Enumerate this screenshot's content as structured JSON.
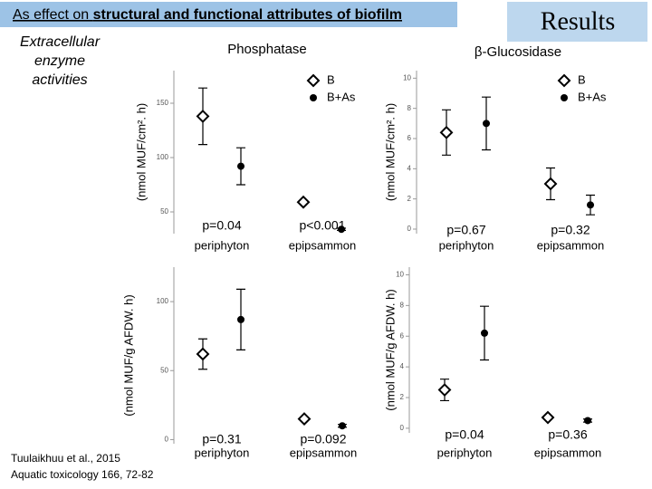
{
  "header": {
    "title_plain": "As effect on ",
    "title_bold": "structural and functional attributes of biofilm",
    "section": "Results"
  },
  "side_label": {
    "lines": [
      "Extracellular",
      "enzyme",
      "activities"
    ]
  },
  "citation": {
    "lines": [
      "Tuulaikhuu et al., 2015",
      "Aquatic toxicology 166, 72-82"
    ]
  },
  "chart_data": [
    {
      "type": "scatter",
      "title": "Phosphatase",
      "y_label": "(nmol MUF/cm². h)",
      "categories": [
        "periphyton",
        "epipsammon"
      ],
      "p_values": [
        "p=0.04",
        "p<0.001"
      ],
      "ylim": [
        30,
        180
      ],
      "yticks": [
        50,
        100,
        150
      ],
      "legend": "upper right",
      "series": [
        {
          "name": "B",
          "marker": "diamond",
          "color": "#000000",
          "values": [
            138,
            59
          ],
          "errors": [
            26,
            1
          ]
        },
        {
          "name": "B+As",
          "marker": "circle",
          "color": "#000000",
          "values": [
            92,
            34
          ],
          "errors": [
            17,
            1
          ]
        }
      ]
    },
    {
      "type": "scatter",
      "title": "β-Glucosidase",
      "y_label": "(nmol MUF/cm². h)",
      "categories": [
        "periphyton",
        "epipsammon"
      ],
      "p_values": [
        "p=0.67",
        "p=0.32"
      ],
      "ylim": [
        -0.3,
        10.5
      ],
      "yticks": [
        0,
        2,
        4,
        6,
        8,
        10
      ],
      "legend": "upper right",
      "series": [
        {
          "name": "B",
          "marker": "diamond",
          "color": "#000000",
          "values": [
            6.4,
            3.0
          ],
          "errors": [
            1.5,
            1.05
          ]
        },
        {
          "name": "B+As",
          "marker": "circle",
          "color": "#000000",
          "values": [
            7.0,
            1.6
          ],
          "errors": [
            1.75,
            0.65
          ]
        }
      ]
    },
    {
      "type": "scatter",
      "y_label": "(nmol MUF/g AFDW. h)",
      "categories": [
        "periphyton",
        "epipsammon"
      ],
      "p_values": [
        "p=0.31",
        "p=0.092"
      ],
      "ylim": [
        -3,
        125
      ],
      "yticks": [
        0,
        50,
        100
      ],
      "series": [
        {
          "marker": "diamond",
          "color": "#000000",
          "values": [
            62,
            15
          ],
          "errors": [
            11,
            1
          ]
        },
        {
          "marker": "circle",
          "color": "#000000",
          "values": [
            87,
            10
          ],
          "errors": [
            22,
            1
          ]
        }
      ]
    },
    {
      "type": "scatter",
      "y_label": "(nmol MUF/g AFDW. h)",
      "categories": [
        "periphyton",
        "epipsammon"
      ],
      "p_values": [
        "p=0.04",
        "p=0.36"
      ],
      "ylim": [
        -0.3,
        10.5
      ],
      "yticks": [
        0,
        2,
        4,
        6,
        8,
        10
      ],
      "series": [
        {
          "marker": "diamond",
          "color": "#000000",
          "values": [
            2.5,
            0.7
          ],
          "errors": [
            0.7,
            0.1
          ]
        },
        {
          "marker": "circle",
          "color": "#000000",
          "values": [
            6.2,
            0.5
          ],
          "errors": [
            1.75,
            0.1
          ]
        }
      ]
    }
  ]
}
